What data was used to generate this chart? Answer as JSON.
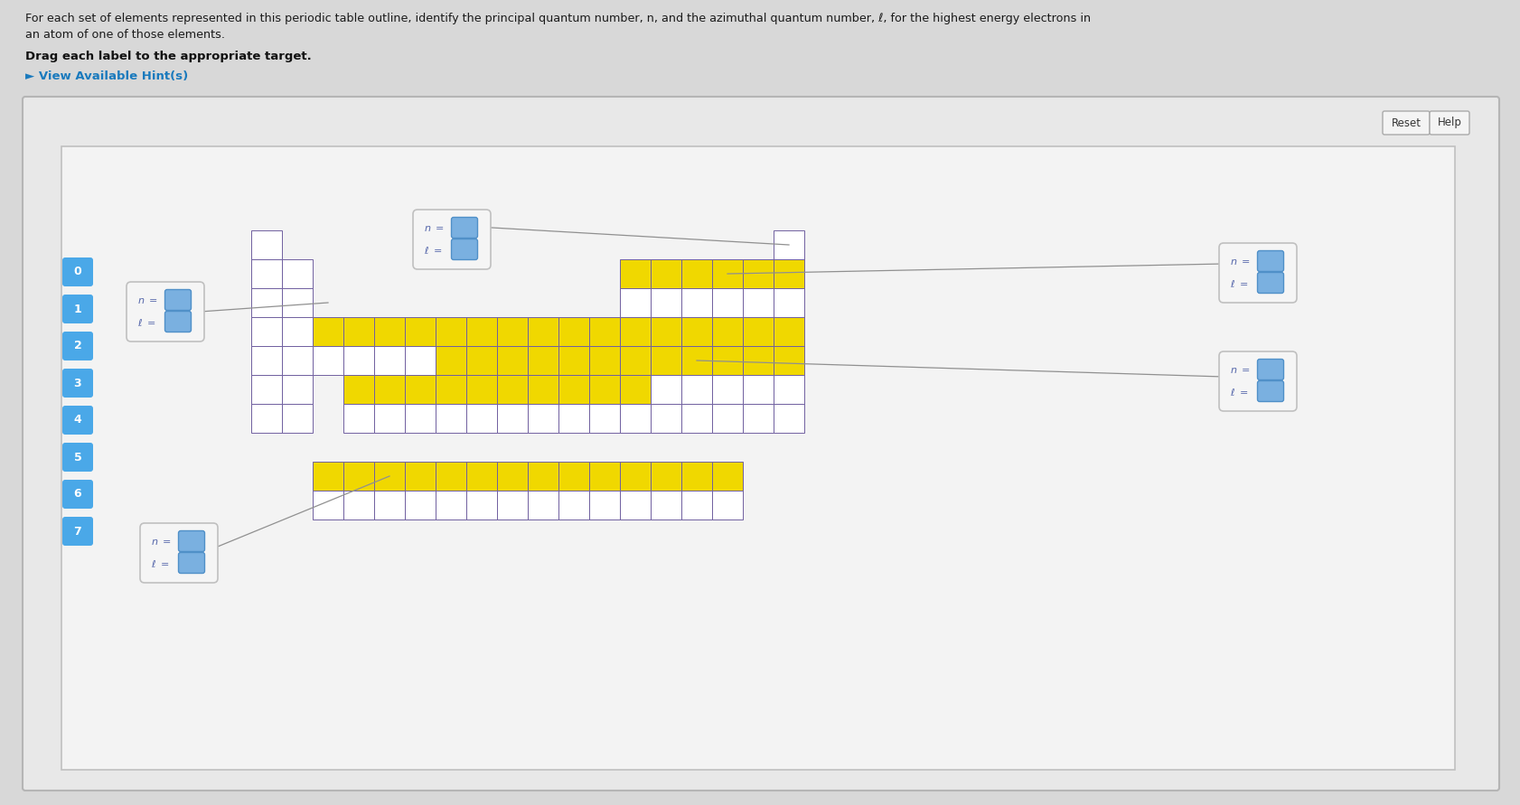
{
  "bg_outer": "#d8d8d8",
  "bg_panel": "#e5e5e5",
  "bg_inner": "#f2f2f2",
  "cell_white": "#ffffff",
  "cell_yellow": "#f0d800",
  "cell_border_main": "#7060a0",
  "cell_border_dark": "#404050",
  "blue_fill": "#7ab0e0",
  "blue_border": "#5090c8",
  "label_fill": "#f5f5f5",
  "label_border": "#c0c0c0",
  "sidebar_fill": "#4aa8e8",
  "line_color": "#909090",
  "header1": "For each set of elements represented in this periodic table outline, identify the principal quantum number, n, and the azimuthal quantum number, ℓ, for the highest energy electrons in",
  "header2": "an atom of one of those elements.",
  "drag_text": "Drag each label to the appropriate target.",
  "hint_text": "► View Available Hint(s)",
  "hint_color": "#1a7abd",
  "sidebar_nums": [
    "0",
    "1",
    "2",
    "3",
    "4",
    "5",
    "6",
    "7"
  ],
  "reset_btn": "Reset",
  "help_btn": "Help"
}
